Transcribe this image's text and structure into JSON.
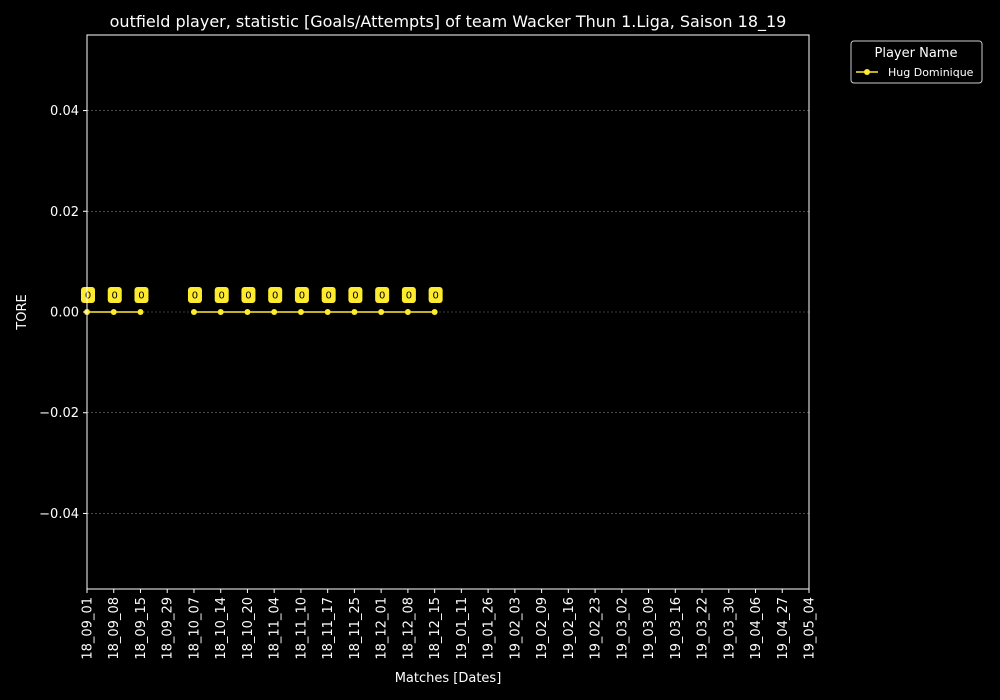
{
  "chart_data": {
    "type": "line",
    "title": "outfield player, statistic [Goals/Attempts] of team Wacker Thun 1.Liga, Saison 18_19",
    "xlabel": "Matches [Dates]",
    "ylabel": "TORE",
    "ylim": [
      -0.055,
      0.055
    ],
    "yticks": [
      -0.04,
      -0.02,
      0.0,
      0.02,
      0.04
    ],
    "ytick_labels": [
      "−0.04",
      "−0.02",
      "0.00",
      "0.02",
      "0.04"
    ],
    "grid": "y",
    "categories": [
      "18_09_01",
      "18_09_08",
      "18_09_15",
      "18_09_29",
      "18_10_07",
      "18_10_14",
      "18_10_20",
      "18_11_04",
      "18_11_10",
      "18_11_17",
      "18_11_25",
      "18_12_01",
      "18_12_08",
      "18_12_15",
      "19_01_11",
      "19_01_26",
      "19_02_03",
      "19_02_09",
      "19_02_16",
      "19_02_23",
      "19_03_02",
      "19_03_09",
      "19_03_16",
      "19_03_22",
      "19_03_30",
      "19_04_06",
      "19_04_27",
      "19_05_04"
    ],
    "series": [
      {
        "name": "Hug Dominique",
        "color": "#ffeb2e",
        "segments": [
          {
            "x": [
              "18_09_01",
              "18_09_08",
              "18_09_15"
            ],
            "values": [
              0,
              0,
              0
            ],
            "labels": [
              "0",
              "0",
              "0"
            ]
          },
          {
            "x": [
              "18_10_07",
              "18_10_14",
              "18_10_20",
              "18_11_04",
              "18_11_10",
              "18_11_17",
              "18_11_25",
              "18_12_01",
              "18_12_08",
              "18_12_15"
            ],
            "values": [
              0,
              0,
              0,
              0,
              0,
              0,
              0,
              0,
              0,
              0
            ],
            "labels": [
              "0",
              "0",
              "0",
              "0",
              "0",
              "0",
              "0",
              "0",
              "0",
              "0"
            ]
          }
        ]
      }
    ],
    "legend": {
      "title": "Player Name",
      "placement": "outside-top-right"
    }
  }
}
